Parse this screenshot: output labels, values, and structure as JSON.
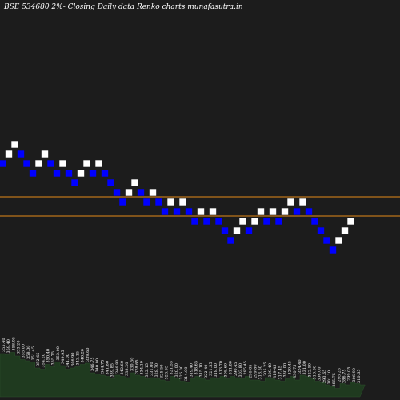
{
  "chart_data": {
    "type": "renko",
    "title": "BSE 534680  2%-  Closing Daily data  Renko  charts munafasutra.in",
    "brick_step_value": 4,
    "y_reference_value": 346,
    "colors": {
      "background": "#1c1c1c",
      "up_brick": "#ffffff",
      "down_brick": "#0000ff",
      "reference_line": "#e58a18",
      "volume_fill": "#1f3a1f"
    },
    "reference_lines": [
      334,
      326
    ],
    "bricks": [
      {
        "dir": "down",
        "level": 346
      },
      {
        "dir": "up",
        "level": 350
      },
      {
        "dir": "up",
        "level": 354
      },
      {
        "dir": "down",
        "level": 350
      },
      {
        "dir": "down",
        "level": 346
      },
      {
        "dir": "down",
        "level": 342
      },
      {
        "dir": "up",
        "level": 346
      },
      {
        "dir": "up",
        "level": 350
      },
      {
        "dir": "down",
        "level": 346
      },
      {
        "dir": "down",
        "level": 342
      },
      {
        "dir": "up",
        "level": 346
      },
      {
        "dir": "down",
        "level": 342
      },
      {
        "dir": "down",
        "level": 338
      },
      {
        "dir": "up",
        "level": 342
      },
      {
        "dir": "up",
        "level": 346
      },
      {
        "dir": "down",
        "level": 342
      },
      {
        "dir": "up",
        "level": 346
      },
      {
        "dir": "down",
        "level": 342
      },
      {
        "dir": "down",
        "level": 338
      },
      {
        "dir": "down",
        "level": 334
      },
      {
        "dir": "down",
        "level": 330
      },
      {
        "dir": "up",
        "level": 334
      },
      {
        "dir": "up",
        "level": 338
      },
      {
        "dir": "down",
        "level": 334
      },
      {
        "dir": "down",
        "level": 330
      },
      {
        "dir": "up",
        "level": 334
      },
      {
        "dir": "down",
        "level": 330
      },
      {
        "dir": "down",
        "level": 326
      },
      {
        "dir": "up",
        "level": 330
      },
      {
        "dir": "down",
        "level": 326
      },
      {
        "dir": "up",
        "level": 330
      },
      {
        "dir": "down",
        "level": 326
      },
      {
        "dir": "down",
        "level": 322
      },
      {
        "dir": "up",
        "level": 326
      },
      {
        "dir": "down",
        "level": 322
      },
      {
        "dir": "up",
        "level": 326
      },
      {
        "dir": "down",
        "level": 322
      },
      {
        "dir": "down",
        "level": 318
      },
      {
        "dir": "down",
        "level": 314
      },
      {
        "dir": "up",
        "level": 318
      },
      {
        "dir": "up",
        "level": 322
      },
      {
        "dir": "down",
        "level": 318
      },
      {
        "dir": "up",
        "level": 322
      },
      {
        "dir": "up",
        "level": 326
      },
      {
        "dir": "down",
        "level": 322
      },
      {
        "dir": "up",
        "level": 326
      },
      {
        "dir": "down",
        "level": 322
      },
      {
        "dir": "up",
        "level": 326
      },
      {
        "dir": "up",
        "level": 330
      },
      {
        "dir": "down",
        "level": 326
      },
      {
        "dir": "up",
        "level": 330
      },
      {
        "dir": "down",
        "level": 326
      },
      {
        "dir": "down",
        "level": 322
      },
      {
        "dir": "down",
        "level": 318
      },
      {
        "dir": "down",
        "level": 314
      },
      {
        "dir": "down",
        "level": 310
      },
      {
        "dir": "up",
        "level": 314
      },
      {
        "dir": "up",
        "level": 318
      },
      {
        "dir": "up",
        "level": 322
      }
    ],
    "price_labels": [
      "355.40",
      "359.40",
      "358.05",
      "353.20",
      "355.00",
      "358.00",
      "351.45",
      "352.65",
      "354.20",
      "350.40",
      "355.75",
      "352.00",
      "349.95",
      "341.00",
      "346.90",
      "343.15",
      "348.20",
      "339.60",
      "346.75",
      "340.00",
      "344.75",
      "341.80",
      "339.85",
      "346.80",
      "342.60",
      "338.20",
      "330.50",
      "328.65",
      "334.10",
      "322.15",
      "331.00",
      "328.70",
      "325.50",
      "323.95",
      "321.55",
      "320.00",
      "326.00",
      "314.00",
      "319.40",
      "318.65",
      "315.10",
      "322.40",
      "321.55",
      "318.00",
      "313.70",
      "308.60",
      "311.80",
      "290.45",
      "303.80",
      "295.45",
      "296.05",
      "299.80",
      "313.50",
      "305.25",
      "309.40",
      "319.45",
      "317.45",
      "330.00",
      "320.45",
      "330.75",
      "324.40",
      "331.00",
      "322.50",
      "310.00",
      "306.00",
      "293.65",
      "301.10",
      "285.75",
      "295.25",
      "286.75",
      "299.05",
      "306.90",
      "310.65"
    ],
    "volume_values": [
      72,
      70,
      74,
      68,
      62,
      60,
      58,
      48,
      46,
      54,
      50,
      58,
      52,
      46,
      48,
      50,
      54,
      56,
      40,
      38,
      36,
      34,
      30,
      36,
      34,
      32,
      40,
      36,
      34,
      30,
      32,
      30,
      28,
      26,
      34,
      30,
      26,
      24,
      30,
      34,
      30,
      28,
      32,
      30,
      34,
      30,
      34,
      32,
      30,
      34,
      28,
      28,
      26,
      32,
      30,
      28,
      26,
      30,
      34,
      28,
      36,
      34,
      30,
      26,
      24,
      20,
      18,
      14,
      22,
      20,
      24,
      22,
      20
    ]
  }
}
